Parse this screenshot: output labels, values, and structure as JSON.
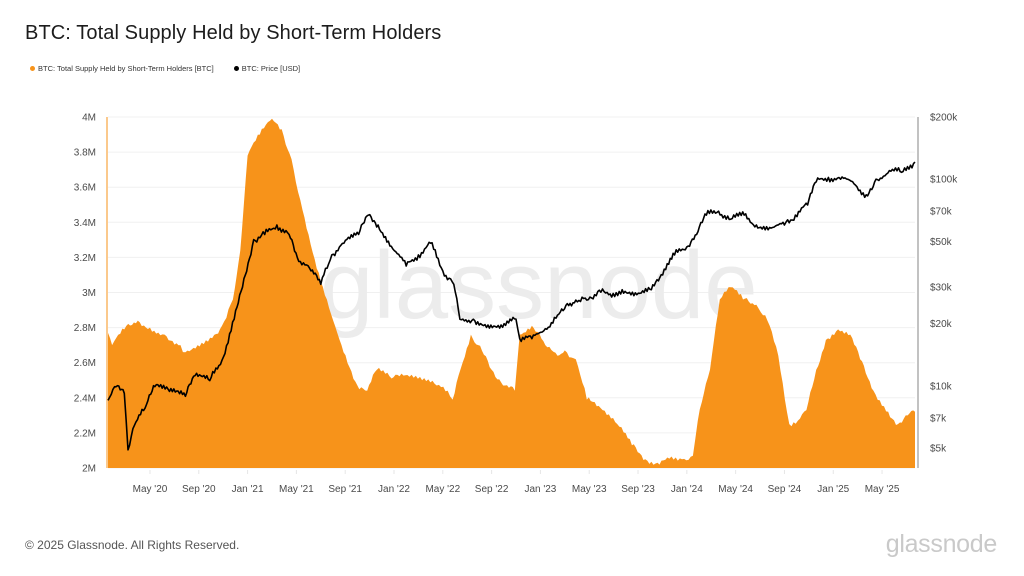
{
  "title": "BTC: Total Supply Held by Short-Term Holders",
  "footer": {
    "copyright": "© 2025 Glassnode. All Rights Reserved.",
    "logo_text": "glassnode"
  },
  "watermark": "glassnode",
  "colors": {
    "supply": "#f7931a",
    "price": "#000000",
    "grid": "#f0f0f0",
    "axis": "#999999"
  },
  "chart_data": {
    "type": "area",
    "title": "BTC: Total Supply Held by Short-Term Holders",
    "legend": [
      {
        "name": "BTC: Total Supply Held by Short-Term Holders [BTC]",
        "color": "#f7931a"
      },
      {
        "name": "BTC: Price [USD]",
        "color": "#000000"
      }
    ],
    "legend_position": "top-left",
    "x_unit": "months since Jan 2020",
    "x_range": [
      0.56,
      66.7
    ],
    "x_ticks": [
      {
        "t": 4,
        "label": "May '20"
      },
      {
        "t": 8,
        "label": "Sep '20"
      },
      {
        "t": 12,
        "label": "Jan '21"
      },
      {
        "t": 16,
        "label": "May '21"
      },
      {
        "t": 20,
        "label": "Sep '21"
      },
      {
        "t": 24,
        "label": "Jan '22"
      },
      {
        "t": 28,
        "label": "May '22"
      },
      {
        "t": 32,
        "label": "Sep '22"
      },
      {
        "t": 36,
        "label": "Jan '23"
      },
      {
        "t": 40,
        "label": "May '23"
      },
      {
        "t": 44,
        "label": "Sep '23"
      },
      {
        "t": 48,
        "label": "Jan '24"
      },
      {
        "t": 52,
        "label": "May '24"
      },
      {
        "t": 56,
        "label": "Sep '24"
      },
      {
        "t": 60,
        "label": "Jan '25"
      },
      {
        "t": 64,
        "label": "May '25"
      }
    ],
    "y_left": {
      "range": [
        2,
        4
      ],
      "unit": "M BTC",
      "ticks": [
        {
          "v": 4,
          "label": "4M"
        },
        {
          "v": 3.8,
          "label": "3.8M"
        },
        {
          "v": 3.6,
          "label": "3.6M"
        },
        {
          "v": 3.4,
          "label": "3.4M"
        },
        {
          "v": 3.2,
          "label": "3.2M"
        },
        {
          "v": 3,
          "label": "3M"
        },
        {
          "v": 2.8,
          "label": "2.8M"
        },
        {
          "v": 2.6,
          "label": "2.6M"
        },
        {
          "v": 2.4,
          "label": "2.4M"
        },
        {
          "v": 2.2,
          "label": "2.2M"
        },
        {
          "v": 2,
          "label": "2M"
        }
      ]
    },
    "y_right": {
      "scale": "log",
      "range": [
        4000,
        200000
      ],
      "unit": "USD",
      "ticks": [
        {
          "v": 200000,
          "label": "$200k"
        },
        {
          "v": 100000,
          "label": "$100k"
        },
        {
          "v": 70000,
          "label": "$70k"
        },
        {
          "v": 50000,
          "label": "$50k"
        },
        {
          "v": 30000,
          "label": "$30k"
        },
        {
          "v": 20000,
          "label": "$20k"
        },
        {
          "v": 10000,
          "label": "$10k"
        },
        {
          "v": 7000,
          "label": "$7k"
        },
        {
          "v": 5000,
          "label": "$5k"
        }
      ]
    },
    "grid": true,
    "series": [
      {
        "name": "BTC: Total Supply Held by Short-Term Holders [BTC]",
        "axis": "left",
        "type": "area",
        "points": [
          [
            0.56,
            2.77
          ],
          [
            0.9,
            2.7
          ],
          [
            1.9,
            2.79
          ],
          [
            3.0,
            2.84
          ],
          [
            4.0,
            2.8
          ],
          [
            5.2,
            2.76
          ],
          [
            6.5,
            2.7
          ],
          [
            6.9,
            2.66
          ],
          [
            7.9,
            2.7
          ],
          [
            9.1,
            2.74
          ],
          [
            9.9,
            2.81
          ],
          [
            10.8,
            2.96
          ],
          [
            11.4,
            3.24
          ],
          [
            12.0,
            3.78
          ],
          [
            13.0,
            3.9
          ],
          [
            14.0,
            3.99
          ],
          [
            14.8,
            3.93
          ],
          [
            15.6,
            3.76
          ],
          [
            16.5,
            3.47
          ],
          [
            17.5,
            3.19
          ],
          [
            18.5,
            2.96
          ],
          [
            19.7,
            2.7
          ],
          [
            21.0,
            2.47
          ],
          [
            21.8,
            2.44
          ],
          [
            22.6,
            2.56
          ],
          [
            23.8,
            2.51
          ],
          [
            25.1,
            2.53
          ],
          [
            26.3,
            2.5
          ],
          [
            27.5,
            2.47
          ],
          [
            28.4,
            2.44
          ],
          [
            28.8,
            2.39
          ],
          [
            29.3,
            2.53
          ],
          [
            30.3,
            2.76
          ],
          [
            30.9,
            2.7
          ],
          [
            32.0,
            2.56
          ],
          [
            33.1,
            2.47
          ],
          [
            33.9,
            2.44
          ],
          [
            34.3,
            2.76
          ],
          [
            35.3,
            2.81
          ],
          [
            36.4,
            2.7
          ],
          [
            37.4,
            2.64
          ],
          [
            38.0,
            2.67
          ],
          [
            38.9,
            2.62
          ],
          [
            39.8,
            2.39
          ],
          [
            41.1,
            2.33
          ],
          [
            42.3,
            2.25
          ],
          [
            43.5,
            2.13
          ],
          [
            44.6,
            2.05
          ],
          [
            45.6,
            2.03
          ],
          [
            46.4,
            2.06
          ],
          [
            47.6,
            2.05
          ],
          [
            48.5,
            2.07
          ],
          [
            48.9,
            2.27
          ],
          [
            49.9,
            2.56
          ],
          [
            50.7,
            2.96
          ],
          [
            51.6,
            3.03
          ],
          [
            52.6,
            2.96
          ],
          [
            53.7,
            2.93
          ],
          [
            54.6,
            2.84
          ],
          [
            55.5,
            2.64
          ],
          [
            56.4,
            2.25
          ],
          [
            57.1,
            2.27
          ],
          [
            57.8,
            2.33
          ],
          [
            58.6,
            2.56
          ],
          [
            59.4,
            2.73
          ],
          [
            60.4,
            2.79
          ],
          [
            61.4,
            2.76
          ],
          [
            62.2,
            2.62
          ],
          [
            63.3,
            2.44
          ],
          [
            64.5,
            2.32
          ],
          [
            65.3,
            2.25
          ],
          [
            66.1,
            2.3
          ],
          [
            66.7,
            2.32
          ]
        ]
      },
      {
        "name": "BTC: Price [USD]",
        "axis": "right",
        "type": "line",
        "points": [
          [
            0.56,
            8500
          ],
          [
            1.1,
            9900
          ],
          [
            1.9,
            9200
          ],
          [
            2.2,
            4900
          ],
          [
            2.6,
            6200
          ],
          [
            3.6,
            7800
          ],
          [
            4.4,
            9900
          ],
          [
            5.6,
            9400
          ],
          [
            6.9,
            8900
          ],
          [
            7.7,
            11200
          ],
          [
            8.9,
            10600
          ],
          [
            9.9,
            13300
          ],
          [
            10.9,
            21000
          ],
          [
            11.7,
            33000
          ],
          [
            12.5,
            51000
          ],
          [
            13.4,
            54000
          ],
          [
            14.4,
            60000
          ],
          [
            15.4,
            54000
          ],
          [
            16.2,
            40000
          ],
          [
            17.2,
            36000
          ],
          [
            18.0,
            31000
          ],
          [
            18.9,
            43000
          ],
          [
            19.9,
            49000
          ],
          [
            21.1,
            54000
          ],
          [
            21.9,
            67000
          ],
          [
            22.7,
            60000
          ],
          [
            23.9,
            46000
          ],
          [
            25.0,
            38000
          ],
          [
            26.0,
            43000
          ],
          [
            27.0,
            49000
          ],
          [
            28.0,
            36000
          ],
          [
            28.9,
            31000
          ],
          [
            29.4,
            21000
          ],
          [
            30.5,
            21000
          ],
          [
            31.7,
            19700
          ],
          [
            32.9,
            19200
          ],
          [
            34.0,
            21000
          ],
          [
            34.3,
            16900
          ],
          [
            35.3,
            16900
          ],
          [
            36.4,
            18900
          ],
          [
            37.4,
            22000
          ],
          [
            38.2,
            25000
          ],
          [
            38.9,
            26000
          ],
          [
            39.8,
            26000
          ],
          [
            40.7,
            28600
          ],
          [
            41.6,
            27600
          ],
          [
            42.7,
            29200
          ],
          [
            43.9,
            27600
          ],
          [
            45.1,
            29200
          ],
          [
            45.9,
            34500
          ],
          [
            47.0,
            43000
          ],
          [
            48.0,
            47000
          ],
          [
            48.8,
            54000
          ],
          [
            49.6,
            67000
          ],
          [
            50.6,
            70000
          ],
          [
            51.6,
            64000
          ],
          [
            52.7,
            67000
          ],
          [
            53.7,
            60000
          ],
          [
            54.9,
            58000
          ],
          [
            56.0,
            60000
          ],
          [
            56.9,
            67000
          ],
          [
            57.9,
            75000
          ],
          [
            58.6,
            97000
          ],
          [
            59.6,
            102000
          ],
          [
            60.6,
            100000
          ],
          [
            61.7,
            95000
          ],
          [
            62.7,
            84000
          ],
          [
            63.5,
            100000
          ],
          [
            64.6,
            110000
          ],
          [
            65.6,
            108000
          ],
          [
            66.7,
            121000
          ]
        ]
      }
    ]
  }
}
